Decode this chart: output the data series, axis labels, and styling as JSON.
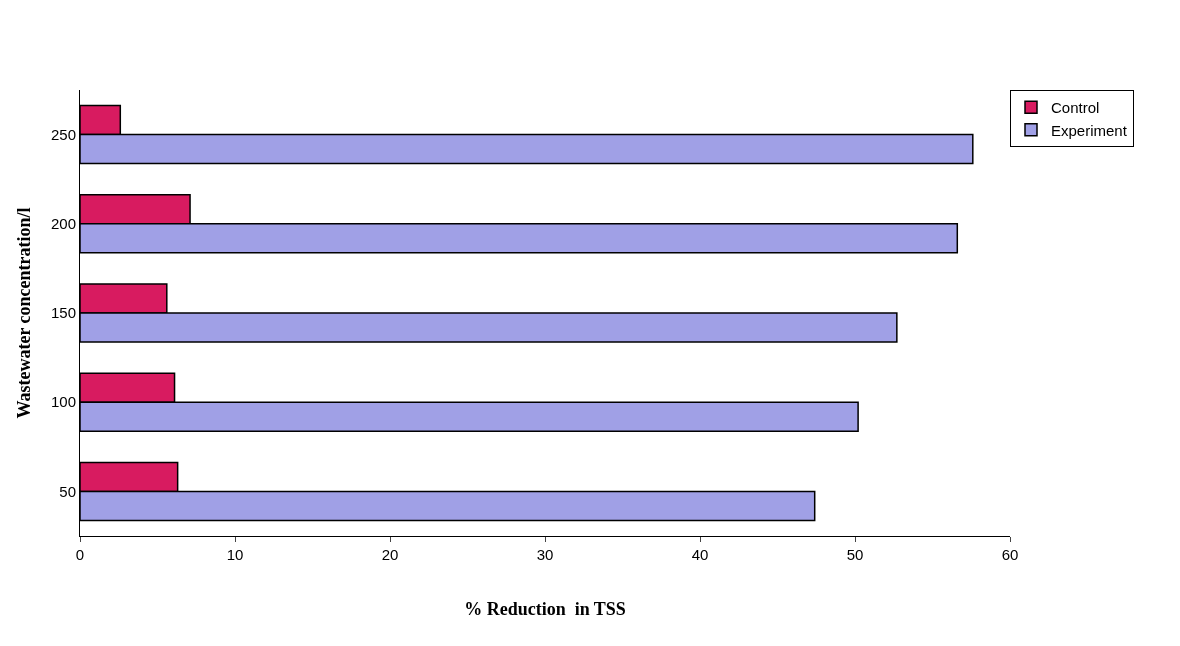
{
  "chart_data": {
    "type": "bar",
    "orientation": "horizontal",
    "xlabel": "% Reduction  in TSS",
    "ylabel": "Wastewater concentration/l",
    "categories": [
      "250",
      "200",
      "150",
      "100",
      "50"
    ],
    "series": [
      {
        "name": "Control",
        "color": "#d81b60",
        "values": [
          2.6,
          7.1,
          5.6,
          6.1,
          6.3
        ]
      },
      {
        "name": "Experiment",
        "color": "#a0a0e6",
        "values": [
          57.6,
          56.6,
          52.7,
          50.2,
          47.4
        ]
      }
    ],
    "xlim": [
      0,
      60
    ],
    "xticks": [
      0,
      10,
      20,
      30,
      40,
      50,
      60
    ],
    "legend": "top right"
  }
}
